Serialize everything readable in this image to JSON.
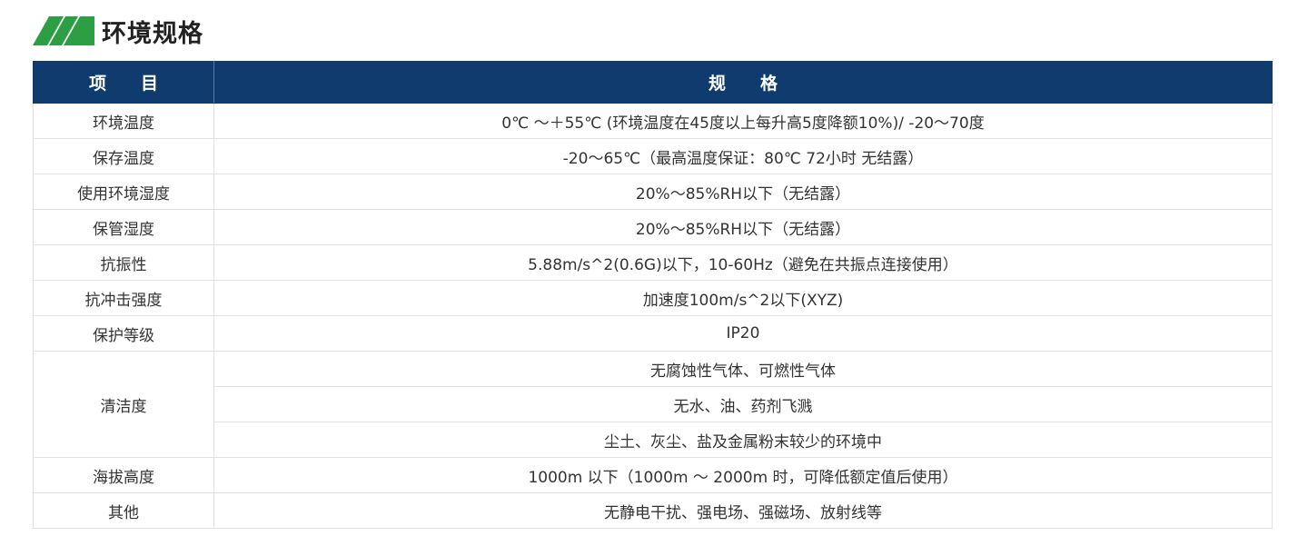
{
  "section": {
    "title": "环境规格",
    "accent_color": "#2e9e45",
    "header_color": "#0f3b6e"
  },
  "table": {
    "headers": [
      "项　　目",
      "规　　格"
    ],
    "rows": [
      {
        "item": "环境温度",
        "specs": [
          "0℃ ～＋55℃ (环境温度在45度以上每升高5度降额10%)/ -20～70度"
        ]
      },
      {
        "item": "保存温度",
        "specs": [
          "-20～65℃（最高温度保证：80℃ 72小时 无结露）"
        ]
      },
      {
        "item": "使用环境湿度",
        "specs": [
          "20%～85%RH以下（无结露）"
        ]
      },
      {
        "item": "保管湿度",
        "specs": [
          "20%～85%RH以下（无结露）"
        ]
      },
      {
        "item": "抗振性",
        "specs": [
          "5.88m/s^2(0.6G)以下，10-60Hz（避免在共振点连接使用）"
        ]
      },
      {
        "item": "抗冲击强度",
        "specs": [
          "加速度100m/s^2以下(XYZ)"
        ]
      },
      {
        "item": "保护等级",
        "specs": [
          "IP20"
        ]
      },
      {
        "item": "清洁度",
        "specs": [
          "无腐蚀性气体、可燃性气体",
          "无水、油、药剂飞溅",
          "尘土、灰尘、盐及金属粉末较少的环境中"
        ]
      },
      {
        "item": "海拔高度",
        "specs": [
          "1000m 以下（1000m ～ 2000m 时，可降低额定值后使用）"
        ]
      },
      {
        "item": "其他",
        "specs": [
          "无静电干扰、强电场、强磁场、放射线等"
        ]
      }
    ]
  }
}
